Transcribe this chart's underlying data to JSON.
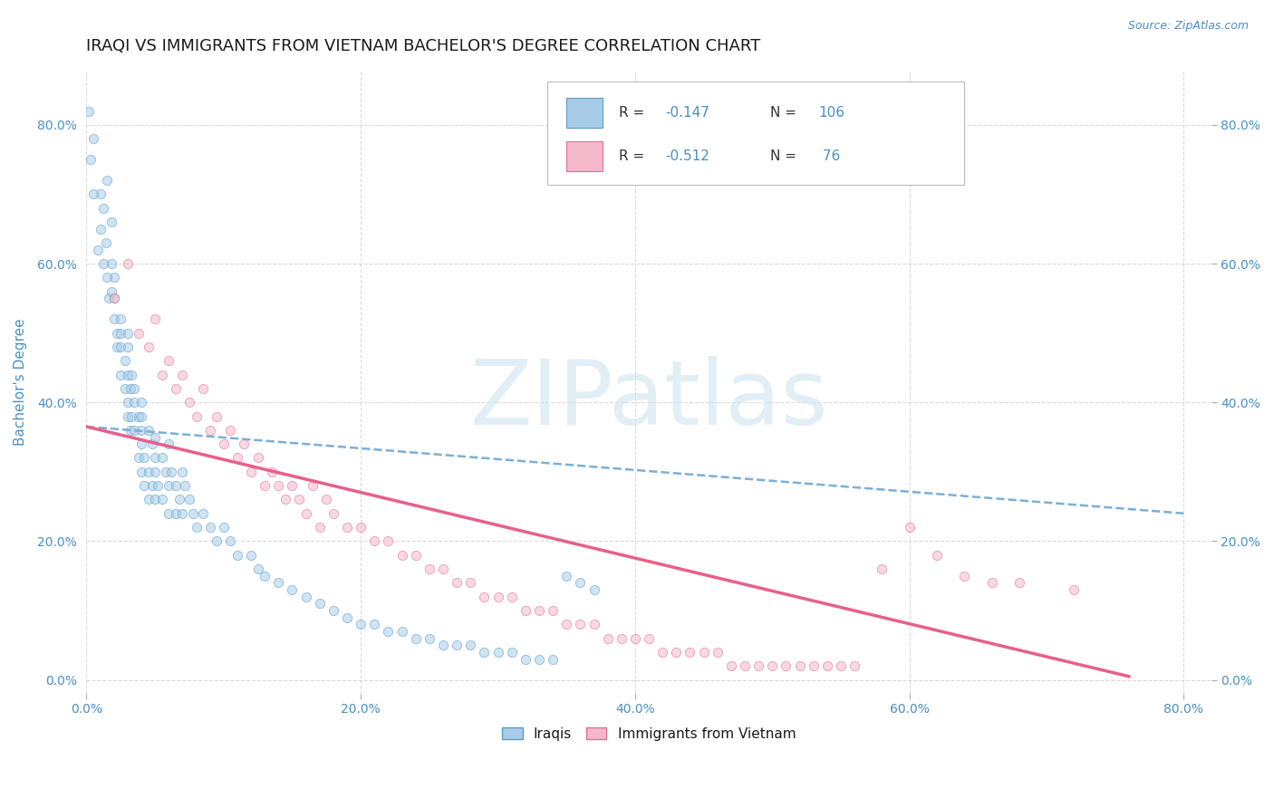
{
  "title": "IRAQI VS IMMIGRANTS FROM VIETNAM BACHELOR'S DEGREE CORRELATION CHART",
  "source_text": "Source: ZipAtlas.com",
  "ylabel": "Bachelor's Degree",
  "xlim": [
    0.0,
    0.82
  ],
  "ylim": [
    -0.02,
    0.88
  ],
  "xticks": [
    0.0,
    0.2,
    0.4,
    0.6,
    0.8
  ],
  "yticks": [
    0.0,
    0.2,
    0.4,
    0.6,
    0.8
  ],
  "xtick_labels": [
    "0.0%",
    "20.0%",
    "40.0%",
    "60.0%",
    "80.0%"
  ],
  "ytick_labels": [
    "0.0%",
    "20.0%",
    "40.0%",
    "60.0%",
    "80.0%"
  ],
  "blue_color": "#a8cce8",
  "pink_color": "#f4b8cb",
  "blue_edge_color": "#5a9ec9",
  "pink_edge_color": "#e07090",
  "blue_line_color": "#7ab0d8",
  "pink_line_color": "#e8608a",
  "title_color": "#1a1a1a",
  "axis_label_color": "#4a90c4",
  "tick_color": "#4a90c4",
  "watermark_color": "#d0e4f0",
  "watermark_text": "ZIPatlas",
  "background_color": "#ffffff",
  "grid_color": "#cccccc",
  "blue_scatter_x": [
    0.005,
    0.01,
    0.01,
    0.012,
    0.014,
    0.015,
    0.016,
    0.018,
    0.018,
    0.02,
    0.02,
    0.02,
    0.022,
    0.022,
    0.025,
    0.025,
    0.025,
    0.025,
    0.028,
    0.028,
    0.03,
    0.03,
    0.03,
    0.03,
    0.03,
    0.032,
    0.032,
    0.033,
    0.033,
    0.035,
    0.035,
    0.035,
    0.038,
    0.038,
    0.04,
    0.04,
    0.04,
    0.04,
    0.04,
    0.042,
    0.042,
    0.045,
    0.045,
    0.045,
    0.048,
    0.048,
    0.05,
    0.05,
    0.05,
    0.05,
    0.052,
    0.055,
    0.055,
    0.058,
    0.06,
    0.06,
    0.06,
    0.062,
    0.065,
    0.065,
    0.068,
    0.07,
    0.07,
    0.072,
    0.075,
    0.078,
    0.08,
    0.085,
    0.09,
    0.095,
    0.1,
    0.105,
    0.11,
    0.12,
    0.125,
    0.13,
    0.14,
    0.15,
    0.16,
    0.17,
    0.18,
    0.19,
    0.2,
    0.21,
    0.22,
    0.23,
    0.24,
    0.25,
    0.26,
    0.27,
    0.28,
    0.29,
    0.3,
    0.31,
    0.32,
    0.33,
    0.34,
    0.35,
    0.36,
    0.37,
    0.002,
    0.003,
    0.005,
    0.008,
    0.012,
    0.015,
    0.018
  ],
  "blue_scatter_y": [
    0.78,
    0.7,
    0.65,
    0.68,
    0.63,
    0.72,
    0.55,
    0.66,
    0.6,
    0.58,
    0.52,
    0.55,
    0.5,
    0.48,
    0.52,
    0.48,
    0.44,
    0.5,
    0.46,
    0.42,
    0.48,
    0.44,
    0.4,
    0.38,
    0.5,
    0.42,
    0.36,
    0.44,
    0.38,
    0.4,
    0.36,
    0.42,
    0.38,
    0.32,
    0.38,
    0.34,
    0.3,
    0.36,
    0.4,
    0.32,
    0.28,
    0.36,
    0.3,
    0.26,
    0.34,
    0.28,
    0.35,
    0.3,
    0.26,
    0.32,
    0.28,
    0.32,
    0.26,
    0.3,
    0.34,
    0.28,
    0.24,
    0.3,
    0.28,
    0.24,
    0.26,
    0.3,
    0.24,
    0.28,
    0.26,
    0.24,
    0.22,
    0.24,
    0.22,
    0.2,
    0.22,
    0.2,
    0.18,
    0.18,
    0.16,
    0.15,
    0.14,
    0.13,
    0.12,
    0.11,
    0.1,
    0.09,
    0.08,
    0.08,
    0.07,
    0.07,
    0.06,
    0.06,
    0.05,
    0.05,
    0.05,
    0.04,
    0.04,
    0.04,
    0.03,
    0.03,
    0.03,
    0.15,
    0.14,
    0.13,
    0.82,
    0.75,
    0.7,
    0.62,
    0.6,
    0.58,
    0.56
  ],
  "pink_scatter_x": [
    0.02,
    0.03,
    0.038,
    0.045,
    0.05,
    0.055,
    0.06,
    0.065,
    0.07,
    0.075,
    0.08,
    0.085,
    0.09,
    0.095,
    0.1,
    0.105,
    0.11,
    0.115,
    0.12,
    0.125,
    0.13,
    0.135,
    0.14,
    0.145,
    0.15,
    0.155,
    0.16,
    0.165,
    0.17,
    0.175,
    0.18,
    0.19,
    0.2,
    0.21,
    0.22,
    0.23,
    0.24,
    0.25,
    0.26,
    0.27,
    0.28,
    0.29,
    0.3,
    0.31,
    0.32,
    0.33,
    0.34,
    0.35,
    0.36,
    0.37,
    0.38,
    0.39,
    0.4,
    0.41,
    0.42,
    0.43,
    0.44,
    0.45,
    0.46,
    0.47,
    0.48,
    0.49,
    0.5,
    0.51,
    0.52,
    0.53,
    0.54,
    0.55,
    0.56,
    0.58,
    0.6,
    0.62,
    0.64,
    0.66,
    0.68,
    0.72
  ],
  "pink_scatter_y": [
    0.55,
    0.6,
    0.5,
    0.48,
    0.52,
    0.44,
    0.46,
    0.42,
    0.44,
    0.4,
    0.38,
    0.42,
    0.36,
    0.38,
    0.34,
    0.36,
    0.32,
    0.34,
    0.3,
    0.32,
    0.28,
    0.3,
    0.28,
    0.26,
    0.28,
    0.26,
    0.24,
    0.28,
    0.22,
    0.26,
    0.24,
    0.22,
    0.22,
    0.2,
    0.2,
    0.18,
    0.18,
    0.16,
    0.16,
    0.14,
    0.14,
    0.12,
    0.12,
    0.12,
    0.1,
    0.1,
    0.1,
    0.08,
    0.08,
    0.08,
    0.06,
    0.06,
    0.06,
    0.06,
    0.04,
    0.04,
    0.04,
    0.04,
    0.04,
    0.02,
    0.02,
    0.02,
    0.02,
    0.02,
    0.02,
    0.02,
    0.02,
    0.02,
    0.02,
    0.16,
    0.22,
    0.18,
    0.15,
    0.14,
    0.14,
    0.13
  ],
  "blue_trend_x": [
    0.0,
    0.8
  ],
  "blue_trend_y": [
    0.365,
    0.24
  ],
  "pink_trend_x": [
    0.0,
    0.76
  ],
  "pink_trend_y": [
    0.365,
    0.005
  ],
  "bottom_legend": [
    "Iraqis",
    "Immigrants from Vietnam"
  ],
  "title_fontsize": 13,
  "axis_fontsize": 11,
  "tick_fontsize": 10,
  "scatter_size": 55,
  "scatter_alpha": 0.55,
  "scatter_linewidth": 0.7
}
